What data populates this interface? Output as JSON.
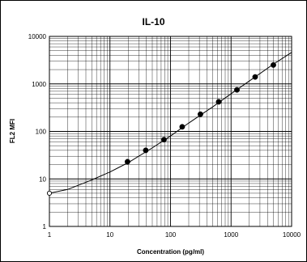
{
  "chart_data": {
    "type": "scatter",
    "title": "IL-10",
    "xlabel": "Concentration  (pg/ml)",
    "ylabel": "FL2 MFI",
    "x_scale": "log",
    "y_scale": "log",
    "xlim": [
      1,
      10000
    ],
    "ylim": [
      1,
      10000
    ],
    "x_ticks": [
      1,
      10,
      100,
      1000,
      10000
    ],
    "x_tick_labels": [
      "1",
      "10",
      "100",
      "1000",
      "10000"
    ],
    "y_ticks": [
      1,
      10,
      100,
      1000,
      10000
    ],
    "y_tick_labels": [
      "1",
      "10",
      "100",
      "1000",
      "10000"
    ],
    "grid": true,
    "legend": "none",
    "series": [
      {
        "marker": "filled-circle",
        "x": [
          19.5,
          39,
          78,
          156,
          312,
          625,
          1250,
          2500,
          5000
        ],
        "y": [
          23,
          40,
          67,
          125,
          230,
          420,
          750,
          1400,
          2500
        ]
      },
      {
        "marker": "open-circle",
        "x": [
          1
        ],
        "y": [
          5
        ]
      }
    ],
    "fit_curve": {
      "x": [
        1,
        2,
        5,
        10,
        20,
        50,
        100,
        200,
        500,
        1000,
        2000,
        5000,
        10000
      ],
      "y": [
        5,
        6,
        9.5,
        14,
        22,
        45,
        80,
        150,
        330,
        620,
        1150,
        2600,
        4600
      ]
    },
    "colors": {
      "grid": "#000000",
      "series": "#000000",
      "background": "#ffffff"
    }
  }
}
